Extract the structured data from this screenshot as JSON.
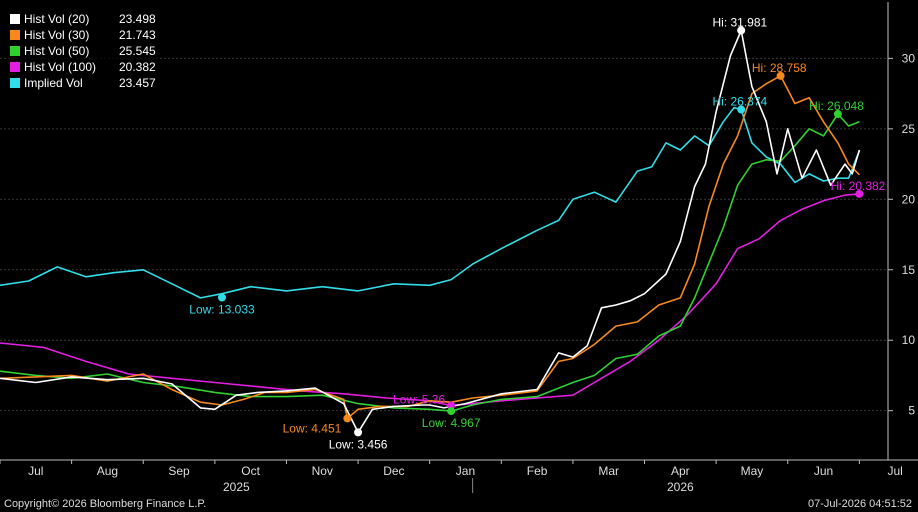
{
  "chart_data": {
    "type": "line",
    "ylim": [
      1.5,
      34
    ],
    "yticks": [
      5,
      10,
      15,
      20,
      25,
      30
    ],
    "x_months": [
      "Jul",
      "Aug",
      "Sep",
      "Oct",
      "Nov",
      "Dec",
      "Jan",
      "Feb",
      "Mar",
      "Apr",
      "May",
      "Jun",
      "Jul"
    ],
    "x_years": [
      "2025",
      "2026"
    ],
    "x_domain": [
      0,
      12.4
    ],
    "grid": true,
    "legend_position": "top-left",
    "series": [
      {
        "name": "Hist Vol (20)",
        "last": "23.498",
        "color": "#ffffff",
        "x": [
          0,
          0.5,
          1,
          1.5,
          2,
          2.4,
          2.8,
          3,
          3.3,
          3.6,
          4,
          4.4,
          4.8,
          5,
          5.2,
          5.5,
          5.9,
          6,
          6.2,
          6.5,
          7,
          7.5,
          7.8,
          8,
          8.2,
          8.4,
          8.6,
          8.8,
          9,
          9.3,
          9.5,
          9.7,
          9.85,
          10,
          10.2,
          10.35,
          10.5,
          10.7,
          10.85,
          11,
          11.2,
          11.4,
          11.6,
          11.8,
          11.9,
          12.0
        ],
        "y": [
          7.3,
          7.0,
          7.4,
          7.2,
          7.3,
          6.9,
          5.2,
          5.1,
          6.1,
          6.3,
          6.4,
          6.6,
          5.5,
          3.46,
          5.1,
          5.3,
          5.4,
          5.4,
          5.2,
          5.5,
          6.2,
          6.5,
          9.1,
          8.8,
          9.6,
          12.3,
          12.5,
          12.8,
          13.3,
          14.7,
          17.0,
          20.9,
          22.5,
          26.2,
          30.2,
          31.98,
          28.0,
          25.5,
          21.8,
          25.0,
          21.5,
          23.5,
          21.0,
          22.5,
          21.8,
          23.5
        ]
      },
      {
        "name": "Hist Vol (30)",
        "last": "21.743",
        "color": "#f7891f",
        "x": [
          0,
          0.5,
          1,
          1.5,
          2,
          2.4,
          2.8,
          3.1,
          3.4,
          3.7,
          4,
          4.4,
          4.8,
          4.85,
          5,
          5.3,
          5.7,
          6,
          6.3,
          6.6,
          7,
          7.5,
          7.8,
          8,
          8.3,
          8.6,
          8.9,
          9.2,
          9.5,
          9.7,
          9.9,
          10.1,
          10.3,
          10.5,
          10.7,
          10.9,
          11.1,
          11.3,
          11.5,
          11.7,
          11.85,
          12.0
        ],
        "y": [
          7.3,
          7.4,
          7.5,
          7.1,
          7.6,
          6.5,
          5.6,
          5.4,
          5.8,
          6.3,
          6.3,
          6.5,
          5.8,
          4.45,
          5.1,
          5.3,
          5.3,
          5.7,
          5.6,
          5.9,
          6.1,
          6.4,
          8.5,
          8.7,
          9.7,
          11.0,
          11.3,
          12.5,
          13.0,
          15.4,
          19.5,
          22.5,
          24.5,
          27.5,
          28.2,
          28.76,
          26.8,
          27.2,
          25.5,
          24.0,
          22.5,
          21.74
        ]
      },
      {
        "name": "Hist Vol (50)",
        "last": "25.545",
        "color": "#31d031",
        "x": [
          0,
          0.5,
          1,
          1.5,
          2,
          2.5,
          3,
          3.5,
          4,
          4.5,
          5,
          5.5,
          6,
          6.3,
          6.6,
          7,
          7.5,
          8,
          8.3,
          8.6,
          8.9,
          9.2,
          9.5,
          9.7,
          9.9,
          10.1,
          10.3,
          10.5,
          10.7,
          10.9,
          11.1,
          11.3,
          11.5,
          11.7,
          11.85,
          12.0
        ],
        "y": [
          7.8,
          7.5,
          7.3,
          7.6,
          7.0,
          6.7,
          6.3,
          6.0,
          6.0,
          6.1,
          5.5,
          5.2,
          5.1,
          4.97,
          5.4,
          5.8,
          6.0,
          7.0,
          7.5,
          8.7,
          9.0,
          10.3,
          11.0,
          13.0,
          15.5,
          18.0,
          21.0,
          22.5,
          22.8,
          22.7,
          23.8,
          25.0,
          24.5,
          26.05,
          25.2,
          25.5
        ]
      },
      {
        "name": "Hist Vol (100)",
        "last": "20.382",
        "color": "#e11ee1",
        "x": [
          0,
          0.6,
          1.2,
          1.8,
          2.4,
          3,
          3.6,
          4.2,
          4.8,
          5.4,
          6,
          6.3,
          6.6,
          7,
          7.5,
          8,
          8.4,
          8.8,
          9.2,
          9.6,
          10,
          10.3,
          10.6,
          10.9,
          11.2,
          11.5,
          11.8,
          12.0
        ],
        "y": [
          9.8,
          9.5,
          8.5,
          7.6,
          7.3,
          7.0,
          6.7,
          6.4,
          6.2,
          5.9,
          5.7,
          5.36,
          5.5,
          5.7,
          5.9,
          6.1,
          7.3,
          8.5,
          10.0,
          11.8,
          14.0,
          16.5,
          17.2,
          18.5,
          19.3,
          19.9,
          20.3,
          20.38
        ]
      },
      {
        "name": "Implied Vol",
        "last": "23.457",
        "color": "#30dde8",
        "x": [
          0,
          0.4,
          0.8,
          1.2,
          1.6,
          2,
          2.4,
          2.8,
          3.1,
          3.5,
          4,
          4.5,
          5,
          5.5,
          6,
          6.3,
          6.6,
          7,
          7.5,
          7.8,
          8,
          8.3,
          8.6,
          8.9,
          9.1,
          9.3,
          9.5,
          9.7,
          9.9,
          10.1,
          10.25,
          10.35,
          10.5,
          10.7,
          10.9,
          11.1,
          11.3,
          11.5,
          11.7,
          11.85,
          12.0
        ],
        "y": [
          13.9,
          14.2,
          15.2,
          14.5,
          14.8,
          15.0,
          14.0,
          13.0,
          13.3,
          13.8,
          13.5,
          13.8,
          13.5,
          14.0,
          13.9,
          14.3,
          15.4,
          16.5,
          17.8,
          18.5,
          20.0,
          20.5,
          19.8,
          22.0,
          22.3,
          24.0,
          23.5,
          24.5,
          23.8,
          25.5,
          26.5,
          26.37,
          24.0,
          23.0,
          22.5,
          21.2,
          21.8,
          21.3,
          21.5,
          21.5,
          23.46
        ]
      }
    ],
    "annotations": [
      {
        "text": "Hi: 31.981",
        "series": 0,
        "x": 10.35,
        "y": 31.98,
        "align": "end"
      },
      {
        "text": "Hi: 28.758",
        "series": 1,
        "x": 10.9,
        "y": 28.76,
        "align": "end"
      },
      {
        "text": "Hi: 26.048",
        "series": 2,
        "x": 11.7,
        "y": 26.05,
        "align": "end"
      },
      {
        "text": "Hi: 20.382",
        "series": 3,
        "x": 12.0,
        "y": 20.38,
        "align": "end"
      },
      {
        "text": "Hi: 26.374",
        "series": 4,
        "x": 10.35,
        "y": 26.37,
        "align": "end"
      },
      {
        "text": "Low: 13.033",
        "series": 4,
        "x": 3.1,
        "y": 13.03,
        "align": "below"
      },
      {
        "text": "Low: 4.451",
        "series": 1,
        "x": 4.85,
        "y": 4.45,
        "align": "below-left"
      },
      {
        "text": "Low: 3.456",
        "series": 0,
        "x": 5.0,
        "y": 3.46,
        "align": "below"
      },
      {
        "text": "Low: 5.36",
        "series": 3,
        "x": 6.3,
        "y": 5.36,
        "align": "left"
      },
      {
        "text": "Low: 4.967",
        "series": 2,
        "x": 6.3,
        "y": 4.97,
        "align": "below"
      }
    ]
  },
  "footer": {
    "copyright": "Copyright© 2026 Bloomberg Finance L.P.",
    "timestamp": "07-Jul-2026 04:51:52"
  }
}
